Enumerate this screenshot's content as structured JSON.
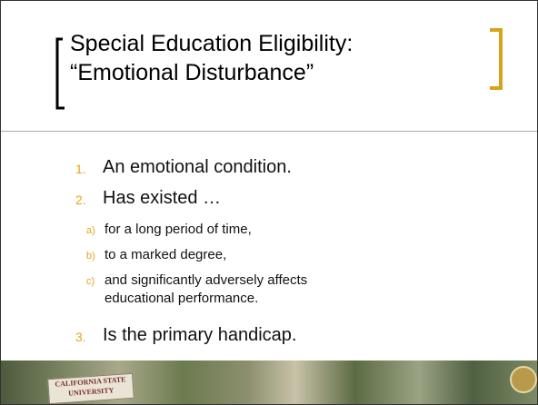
{
  "title": {
    "lines": [
      "Special Education Eligibility:",
      "“Emotional Disturbance”"
    ]
  },
  "list": [
    {
      "marker": "1.",
      "text": "An emotional condition."
    },
    {
      "marker": "2.",
      "text": "Has existed …",
      "subitems": [
        {
          "marker": "a)",
          "text": "for a long period of time,"
        },
        {
          "marker": "b)",
          "text": "to a marked degree,"
        },
        {
          "marker": "c)",
          "text": "and significantly adversely affects educational performance."
        }
      ]
    },
    {
      "marker": "3.",
      "text": "Is the primary handicap."
    }
  ],
  "footer": {
    "sign": [
      "CALIFORNIA STATE",
      "UNIVERSITY"
    ]
  }
}
